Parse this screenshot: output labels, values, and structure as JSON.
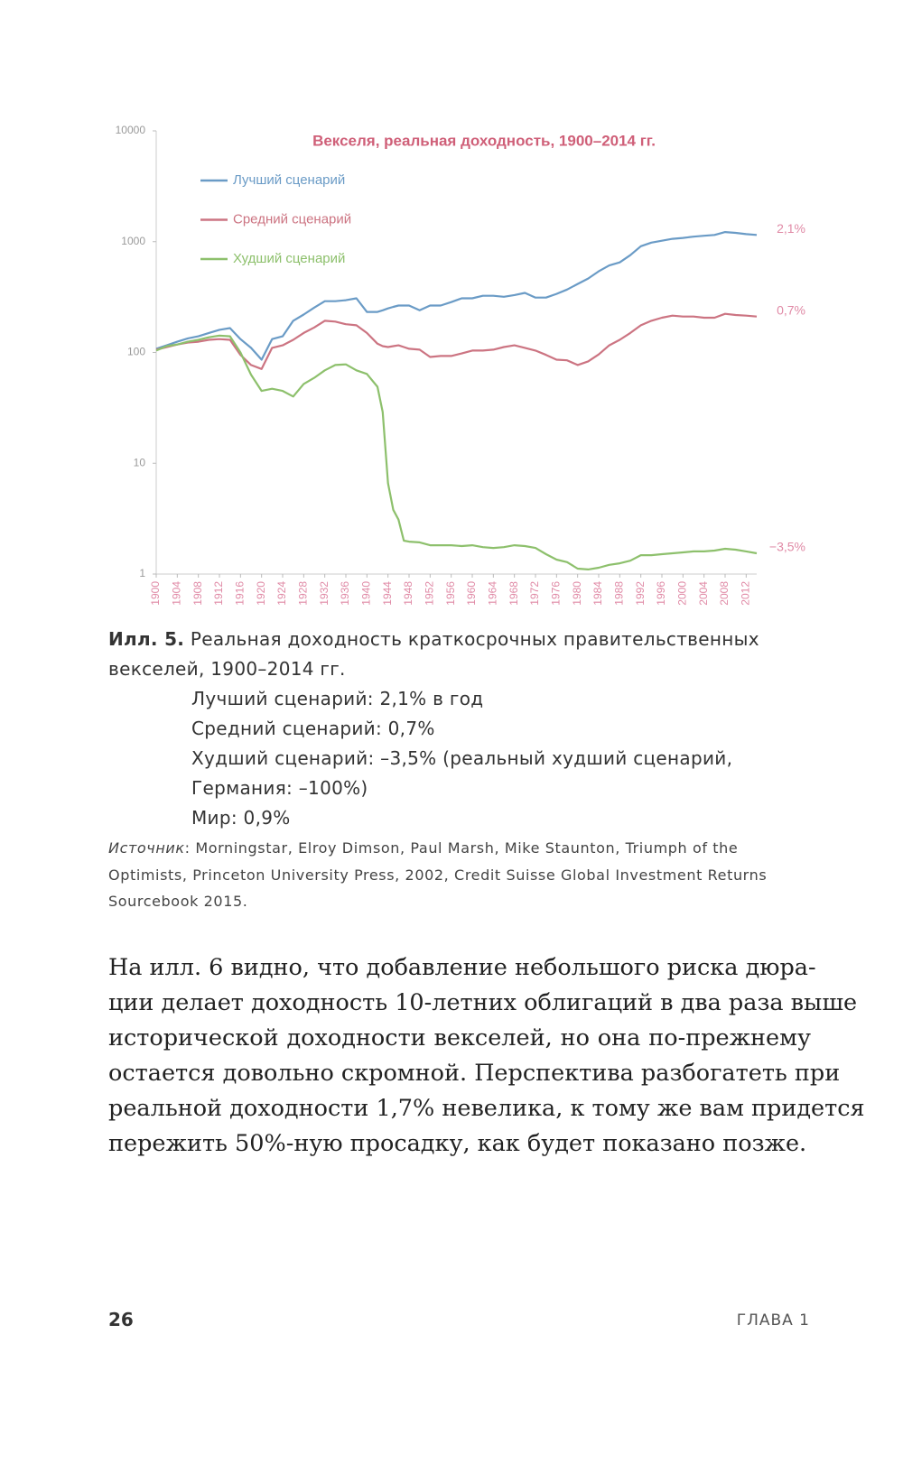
{
  "chart_data": {
    "type": "line",
    "title": "Векселя, реальная доходность, 1900–2014 гг.",
    "log_scale": true,
    "ylim": [
      1,
      10000
    ],
    "yticks": [
      1,
      10,
      100,
      1000,
      10000
    ],
    "xlim": [
      1900,
      2014
    ],
    "xticks": [
      1900,
      1904,
      1908,
      1912,
      1916,
      1920,
      1924,
      1928,
      1932,
      1936,
      1940,
      1944,
      1948,
      1952,
      1956,
      1960,
      1964,
      1968,
      1972,
      1976,
      1980,
      1984,
      1988,
      1992,
      1996,
      2000,
      2004,
      2008,
      2012
    ],
    "x": [
      1900,
      1902,
      1904,
      1906,
      1908,
      1910,
      1912,
      1914,
      1916,
      1918,
      1920,
      1922,
      1924,
      1926,
      1928,
      1930,
      1932,
      1934,
      1936,
      1938,
      1940,
      1942,
      1943,
      1944,
      1945,
      1946,
      1947,
      1948,
      1950,
      1952,
      1954,
      1956,
      1958,
      1960,
      1962,
      1964,
      1966,
      1968,
      1970,
      1972,
      1974,
      1976,
      1978,
      1980,
      1982,
      1984,
      1986,
      1988,
      1990,
      1992,
      1994,
      1996,
      1998,
      2000,
      2002,
      2004,
      2006,
      2008,
      2010,
      2012,
      2014
    ],
    "series": [
      {
        "name": "Лучший сценарий",
        "color": "#6a9bc6",
        "values": [
          108,
          116,
          125,
          134,
          140,
          150,
          160,
          166,
          132,
          110,
          86,
          132,
          140,
          193,
          220,
          254,
          290,
          290,
          296,
          308,
          232,
          232,
          240,
          250,
          258,
          265,
          265,
          265,
          240,
          265,
          265,
          285,
          308,
          308,
          325,
          325,
          318,
          330,
          345,
          313,
          313,
          338,
          370,
          415,
          465,
          540,
          610,
          650,
          755,
          910,
          980,
          1020,
          1060,
          1080,
          1110,
          1130,
          1150,
          1220,
          1200,
          1170,
          1150
        ]
      },
      {
        "name": "Средний сценарий",
        "color": "#cc7482",
        "values": [
          106,
          112,
          118,
          123,
          125,
          130,
          132,
          130,
          95,
          77,
          71,
          110,
          116,
          130,
          150,
          168,
          193,
          190,
          180,
          176,
          150,
          120,
          114,
          112,
          114,
          116,
          112,
          108,
          106,
          91,
          93,
          93,
          98,
          104,
          104,
          106,
          112,
          116,
          110,
          104,
          95,
          86,
          85,
          77,
          83,
          96,
          116,
          130,
          150,
          176,
          193,
          206,
          215,
          211,
          211,
          206,
          206,
          223,
          218,
          215,
          211
        ]
      },
      {
        "name": "Худший сценарий",
        "color": "#8dc06c",
        "values": [
          104,
          114,
          118,
          125,
          130,
          137,
          142,
          140,
          100,
          63,
          45,
          47,
          45,
          40,
          52,
          59,
          69,
          77,
          78,
          69,
          64,
          49,
          29,
          6.6,
          3.8,
          3.1,
          2.0,
          1.96,
          1.93,
          1.82,
          1.82,
          1.82,
          1.79,
          1.82,
          1.75,
          1.72,
          1.75,
          1.82,
          1.79,
          1.72,
          1.51,
          1.35,
          1.28,
          1.12,
          1.1,
          1.14,
          1.21,
          1.25,
          1.32,
          1.48,
          1.48,
          1.51,
          1.54,
          1.57,
          1.6,
          1.6,
          1.63,
          1.69,
          1.66,
          1.6,
          1.54
        ]
      }
    ],
    "annotations": [
      "2,1%",
      "0,7%",
      "−3,5%"
    ]
  },
  "caption": {
    "label": "Илл. 5.",
    "text": "Реальная доходность краткосрочных правительственных векселей, 1900–2014 гг.",
    "items": [
      "Лучший сценарий: 2,1% в год",
      "Средний сценарий: 0,7%",
      "Худший сценарий: –3,5% (реальный худший сценарий, Германия: –100%)",
      "Мир: 0,9%"
    ],
    "source_label": "Источник",
    "source_text": ": Morningstar, Elroy Dimson, Paul Marsh, Mike Staunton, Triumph of the Optimists, Princeton University Press, 2002, Credit Suisse Global Investment Returns Sourcebook 2015."
  },
  "body": {
    "lines": [
      "На илл. 6 видно, что добавление небольшого риска дюра-",
      "ции делает доходность 10-летних облигаций в два раза выше",
      "исторической доходности векселей, но она по-прежнему",
      "остается довольно скромной. Перспектива разбогатеть при",
      "реальной доходности 1,7% невелика, к тому же вам придется",
      "пережить 50%-ную просадку, как будет показано позже."
    ]
  },
  "footer": {
    "page": "26",
    "chapter": "ГЛАВА 1"
  }
}
